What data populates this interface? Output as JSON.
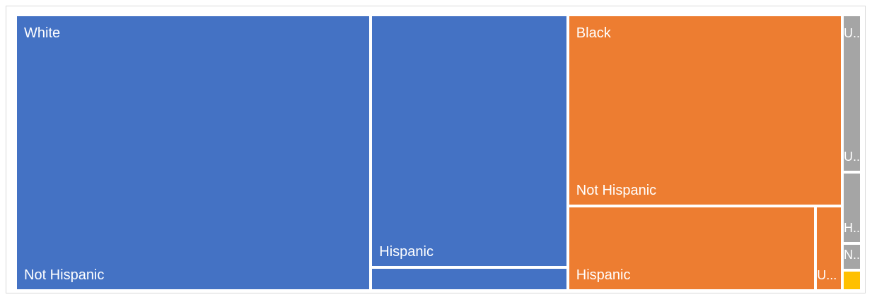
{
  "chart_data": {
    "type": "treemap",
    "colors": {
      "White": "#4472c4",
      "Black": "#ed7d31",
      "Other": "#a5a5a5",
      "Yellow": "#ffc000"
    },
    "groups": [
      {
        "name": "White",
        "color": "White",
        "children": [
          {
            "name": "Not Hispanic",
            "value": 194.2
          },
          {
            "name": "Hispanic",
            "value": 99.0
          },
          {
            "name": "",
            "value": 8.0
          }
        ]
      },
      {
        "name": "Black",
        "color": "Black",
        "children": [
          {
            "name": "Not Hispanic",
            "value": 104.0
          },
          {
            "name": "Hispanic",
            "value": 41.0
          },
          {
            "name": "U...",
            "value": 4.0
          }
        ]
      },
      {
        "name": "U...",
        "color": "Other",
        "children": [
          {
            "name": "U...",
            "value": 5.2
          },
          {
            "name": "H...",
            "value": 2.3
          },
          {
            "name": "N...",
            "value": 0.8
          }
        ]
      },
      {
        "name": "",
        "color": "Yellow",
        "children": [
          {
            "name": "",
            "value": 0.6
          }
        ]
      }
    ]
  }
}
